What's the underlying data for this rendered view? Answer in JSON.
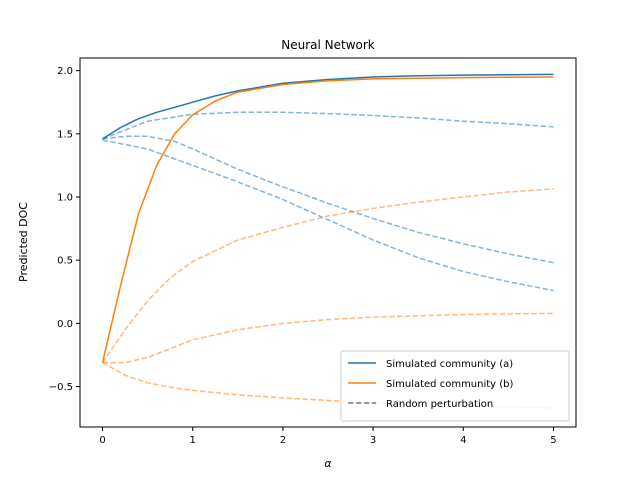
{
  "chart_data": {
    "type": "line",
    "title": "Neural Network",
    "xlabel": "α",
    "ylabel": "Predicted DOC",
    "xlim": [
      -0.25,
      5.25
    ],
    "ylim": [
      -0.82,
      2.1
    ],
    "xticks": [
      0,
      1,
      2,
      3,
      4,
      5
    ],
    "yticks": [
      -0.5,
      0.0,
      0.5,
      1.0,
      1.5,
      2.0
    ],
    "xtick_labels": [
      "0",
      "1",
      "2",
      "3",
      "4",
      "5"
    ],
    "ytick_labels": [
      "−0.5",
      "0.0",
      "0.5",
      "1.0",
      "1.5",
      "2.0"
    ],
    "grid": false,
    "legend_position": "lower-right",
    "legend": [
      {
        "label": "Simulated community (a)",
        "color": "#1f77b4",
        "style": "solid"
      },
      {
        "label": "Simulated community (b)",
        "color": "#ff7f0e",
        "style": "solid"
      },
      {
        "label": "Random perturbation",
        "color": "#7f7f7f",
        "style": "dashed"
      }
    ],
    "series": [
      {
        "name": "Simulated community (a)",
        "color": "#1f77b4",
        "style": "solid",
        "opacity": 1,
        "x": [
          0,
          0.2,
          0.4,
          0.6,
          0.8,
          1.0,
          1.25,
          1.5,
          2.0,
          2.5,
          3.0,
          3.5,
          4.0,
          4.5,
          5.0
        ],
        "y": [
          1.46,
          1.55,
          1.62,
          1.67,
          1.71,
          1.75,
          1.8,
          1.84,
          1.9,
          1.93,
          1.95,
          1.96,
          1.965,
          1.968,
          1.97
        ]
      },
      {
        "name": "Simulated community (b)",
        "color": "#ff7f0e",
        "style": "solid",
        "opacity": 1,
        "x": [
          0,
          0.2,
          0.4,
          0.6,
          0.8,
          1.0,
          1.25,
          1.5,
          2.0,
          2.5,
          3.0,
          3.5,
          4.0,
          4.5,
          5.0
        ],
        "y": [
          -0.31,
          0.3,
          0.87,
          1.25,
          1.5,
          1.65,
          1.76,
          1.83,
          1.89,
          1.92,
          1.935,
          1.94,
          1.945,
          1.948,
          1.95
        ]
      },
      {
        "color": "#1f77b4",
        "style": "dashed",
        "opacity": 0.55,
        "x": [
          0,
          0.5,
          1.0,
          1.5,
          2.0,
          2.5,
          3.0,
          3.5,
          4.0,
          4.5,
          5.0
        ],
        "y": [
          1.46,
          1.6,
          1.655,
          1.67,
          1.67,
          1.66,
          1.645,
          1.625,
          1.6,
          1.58,
          1.555
        ]
      },
      {
        "color": "#1f77b4",
        "style": "dashed",
        "opacity": 0.55,
        "x": [
          0,
          0.25,
          0.5,
          0.8,
          1.0,
          1.5,
          2.0,
          2.5,
          3.0,
          3.5,
          4.0,
          4.5,
          5.0
        ],
        "y": [
          1.46,
          1.48,
          1.48,
          1.44,
          1.38,
          1.22,
          1.08,
          0.95,
          0.83,
          0.72,
          0.63,
          0.55,
          0.48
        ]
      },
      {
        "color": "#1f77b4",
        "style": "dashed",
        "opacity": 0.55,
        "x": [
          0,
          0.5,
          1.0,
          1.5,
          2.0,
          2.5,
          3.0,
          3.5,
          4.0,
          4.5,
          5.0
        ],
        "y": [
          1.45,
          1.38,
          1.25,
          1.12,
          0.98,
          0.82,
          0.66,
          0.52,
          0.41,
          0.33,
          0.26
        ]
      },
      {
        "color": "#ff7f0e",
        "style": "dashed",
        "opacity": 0.55,
        "x": [
          0,
          0.25,
          0.5,
          0.75,
          1.0,
          1.5,
          2.0,
          2.5,
          3.0,
          3.5,
          4.0,
          4.5,
          5.0
        ],
        "y": [
          -0.31,
          -0.05,
          0.18,
          0.36,
          0.49,
          0.66,
          0.76,
          0.85,
          0.91,
          0.96,
          1.0,
          1.04,
          1.065
        ]
      },
      {
        "color": "#ff7f0e",
        "style": "dashed",
        "opacity": 0.55,
        "x": [
          0,
          0.25,
          0.5,
          0.75,
          1.0,
          1.5,
          2.0,
          2.5,
          3.0,
          3.5,
          4.0,
          4.5,
          5.0
        ],
        "y": [
          -0.31,
          -0.31,
          -0.27,
          -0.2,
          -0.13,
          -0.05,
          0.0,
          0.03,
          0.05,
          0.06,
          0.07,
          0.075,
          0.08
        ]
      },
      {
        "color": "#ff7f0e",
        "style": "dashed",
        "opacity": 0.55,
        "x": [
          0,
          0.25,
          0.5,
          0.75,
          1.0,
          1.5,
          2.0,
          2.5,
          3.0,
          3.5,
          4.0,
          4.5,
          5.0
        ],
        "y": [
          -0.31,
          -0.41,
          -0.47,
          -0.505,
          -0.53,
          -0.565,
          -0.59,
          -0.61,
          -0.625,
          -0.64,
          -0.65,
          -0.66,
          -0.67
        ]
      }
    ]
  }
}
